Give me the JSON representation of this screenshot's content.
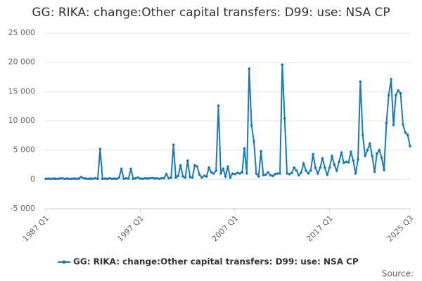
{
  "chart_data": {
    "type": "line",
    "title": "GG: RIKA: change:Other capital transfers: D99: use: NSA CP",
    "source": "Source:",
    "categories": [
      "1987 Q1",
      null,
      null,
      null,
      null,
      null,
      null,
      null,
      null,
      null,
      null,
      null,
      null,
      null,
      null,
      null,
      null,
      null,
      null,
      null,
      null,
      null,
      null,
      null,
      null,
      null,
      null,
      null,
      null,
      null,
      null,
      null,
      null,
      null,
      null,
      null,
      null,
      null,
      null,
      null,
      "1997 Q1",
      null,
      null,
      null,
      null,
      null,
      null,
      null,
      null,
      null,
      null,
      null,
      null,
      null,
      null,
      null,
      null,
      null,
      null,
      null,
      null,
      null,
      null,
      null,
      null,
      null,
      null,
      null,
      null,
      null,
      null,
      null,
      null,
      null,
      null,
      null,
      null,
      null,
      null,
      null,
      "2007 Q1",
      null,
      null,
      null,
      null,
      null,
      null,
      null,
      null,
      null,
      null,
      null,
      null,
      null,
      null,
      null,
      null,
      null,
      null,
      null,
      null,
      null,
      null,
      null,
      null,
      null,
      null,
      null,
      null,
      null,
      null,
      null,
      null,
      null,
      null,
      null,
      null,
      null,
      null,
      null,
      "2017 Q1",
      null,
      null,
      null,
      null,
      null,
      null,
      null,
      null,
      null,
      null,
      null,
      null,
      null,
      null,
      null,
      null,
      null,
      null,
      null,
      null,
      null,
      null,
      null,
      null,
      null,
      null,
      null,
      null,
      null,
      null,
      null,
      null,
      null,
      "2025 Q3"
    ],
    "series": [
      {
        "name": "GG: RIKA: change:Other capital transfers: D99: use: NSA CP",
        "color": "#1b7ab5",
        "values": [
          100,
          150,
          100,
          150,
          120,
          100,
          150,
          200,
          100,
          150,
          100,
          120,
          150,
          100,
          150,
          400,
          200,
          150,
          100,
          150,
          120,
          200,
          100,
          5200,
          100,
          150,
          100,
          200,
          100,
          150,
          100,
          300,
          1800,
          100,
          200,
          150,
          1800,
          100,
          200,
          300,
          150,
          100,
          200,
          150,
          200,
          250,
          150,
          200,
          100,
          200,
          200,
          900,
          200,
          300,
          5900,
          300,
          600,
          2400,
          500,
          300,
          3200,
          400,
          300,
          2400,
          2200,
          800,
          300,
          600,
          500,
          2000,
          1200,
          1000,
          1500,
          12600,
          1000,
          1800,
          500,
          2200,
          300,
          1000,
          900,
          1100,
          1000,
          1200,
          5300,
          1000,
          18900,
          9200,
          6500,
          1000,
          500,
          4800,
          700,
          800,
          1200,
          700,
          600,
          900,
          1000,
          1000,
          19600,
          10400,
          1000,
          900,
          1100,
          2000,
          1500,
          700,
          1200,
          2700,
          1500,
          1000,
          1500,
          4300,
          2000,
          1000,
          2000,
          3600,
          2000,
          800,
          2000,
          4000,
          2500,
          1500,
          3000,
          4600,
          2800,
          3000,
          2900,
          4700,
          3200,
          1000,
          3400,
          16700,
          7600,
          4000,
          5000,
          6100,
          4000,
          1300,
          4400,
          5000,
          3700,
          1600,
          9600,
          14400,
          17100,
          9300,
          14400,
          15200,
          14700,
          9400,
          8000,
          7600,
          5700
        ]
      }
    ],
    "ylim": [
      -5000,
      25000
    ],
    "yticks": [
      {
        "value": -5000,
        "label": "-5 000"
      },
      0,
      {
        "value": 5000,
        "label": "5 000"
      },
      {
        "value": 10000,
        "label": "10 000"
      },
      {
        "value": 15000,
        "label": "15 000"
      },
      {
        "value": 20000,
        "label": "20 000"
      },
      {
        "value": 25000,
        "label": "25 000"
      }
    ],
    "grid": true
  }
}
